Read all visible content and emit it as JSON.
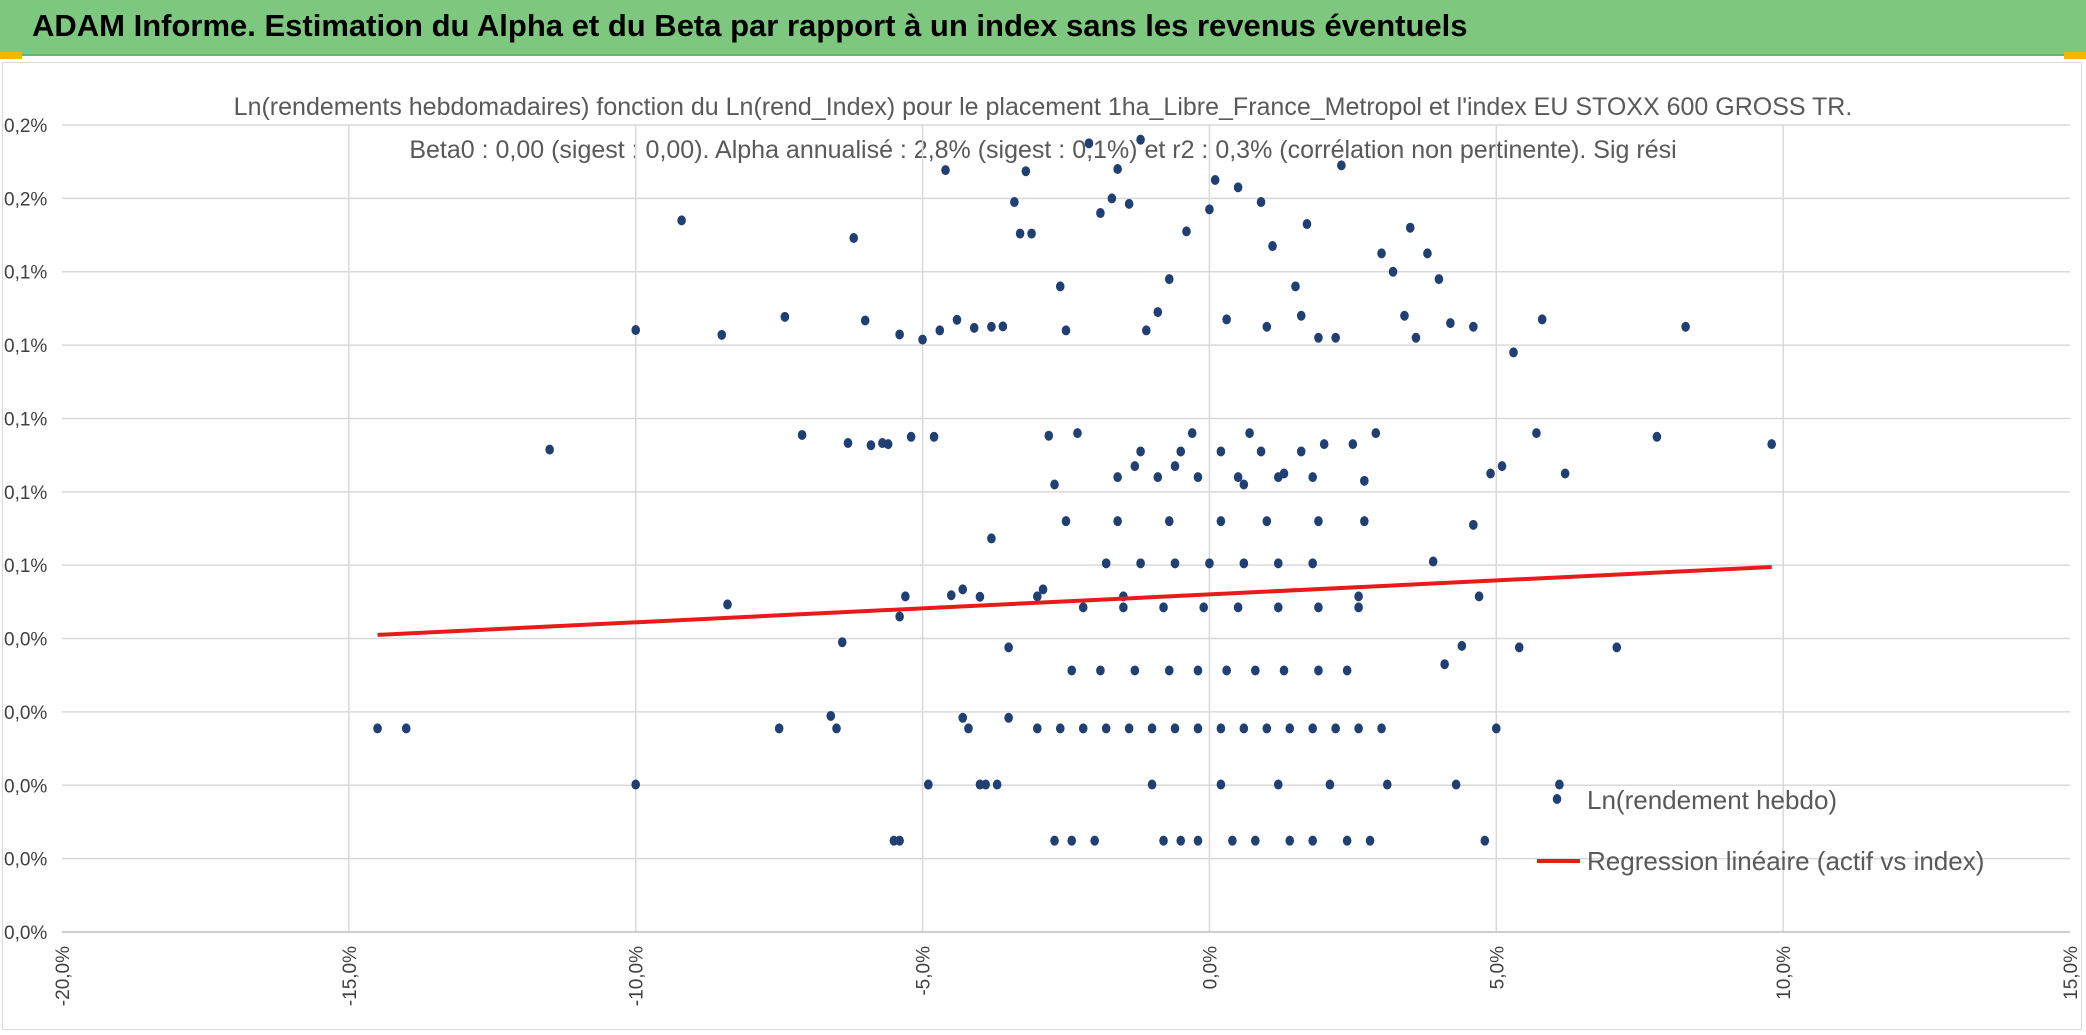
{
  "banner": {
    "title": "ADAM Informe. Estimation du Alpha et du Beta par rapport à un index sans les revenus éventuels",
    "color": "#7dc77e"
  },
  "chart_data": {
    "type": "scatter",
    "title_line1": "Ln(rendements hebdomadaires) fonction du Ln(rend_Index) pour le placement 1ha_Libre_France_Metropol et l'index EU STOXX 600 GROSS TR.",
    "title_line2": "Beta0 : 0,00 (sigest : 0,00). Alpha annualisé : 2,8% (sigest : 0,1%) et r2 : 0,3% (corrélation non pertinente). Sig rési",
    "xlabel": "",
    "ylabel": "",
    "xlim": [
      -20,
      15
    ],
    "ylim": [
      0,
      0.22
    ],
    "x_ticks": [
      -20,
      -15,
      -10,
      -5,
      0,
      5,
      10,
      15
    ],
    "x_tick_labels": [
      "-20,0%",
      "-15,0%",
      "-10,0%",
      "-5,0%",
      "0,0%",
      "5,0%",
      "10,0%",
      "15,0%"
    ],
    "y_ticks": [
      0,
      0.02,
      0.04,
      0.06,
      0.08,
      0.1,
      0.12,
      0.14,
      0.16,
      0.18,
      0.2,
      0.22
    ],
    "y_tick_labels": [
      "0,0%",
      "0,0%",
      "0,0%",
      "0,0%",
      "0,0%",
      "0,1%",
      "0,1%",
      "0,1%",
      "0,1%",
      "0,1%",
      "0,2%",
      "0,2%"
    ],
    "grid": true,
    "legend_position": "bottom-right",
    "series": [
      {
        "name": "Ln(rendement hebdo)",
        "kind": "scatter",
        "color": "#203f73",
        "points": [
          [
            -14.5,
            0.0555
          ],
          [
            -14.0,
            0.0555
          ],
          [
            -11.5,
            0.1315
          ],
          [
            -9.2,
            0.194
          ],
          [
            -10.0,
            0.1641
          ],
          [
            -10.0,
            0.0402
          ],
          [
            -8.5,
            0.1628
          ],
          [
            -8.4,
            0.0893
          ],
          [
            -7.5,
            0.0555
          ],
          [
            -7.4,
            0.1677
          ],
          [
            -7.1,
            0.1355
          ],
          [
            -6.6,
            0.0589
          ],
          [
            -6.5,
            0.0555
          ],
          [
            -6.4,
            0.079
          ],
          [
            -6.3,
            0.1333
          ],
          [
            -6.2,
            0.1892
          ],
          [
            -6.0,
            0.1667
          ],
          [
            -5.9,
            0.1327
          ],
          [
            -5.7,
            0.1333
          ],
          [
            -5.6,
            0.133
          ],
          [
            -5.5,
            0.0249
          ],
          [
            -5.4,
            0.0249
          ],
          [
            -5.4,
            0.1629
          ],
          [
            -5.4,
            0.086
          ],
          [
            -5.3,
            0.0915
          ],
          [
            -5.2,
            0.135
          ],
          [
            -5.0,
            0.1615
          ],
          [
            -4.9,
            0.0402
          ],
          [
            -4.9,
            0.0402
          ],
          [
            -4.8,
            0.135
          ],
          [
            -4.7,
            0.164
          ],
          [
            -4.6,
            0.2077
          ],
          [
            -4.5,
            0.0918
          ],
          [
            -4.4,
            0.1669
          ],
          [
            -4.3,
            0.0934
          ],
          [
            -4.3,
            0.0584
          ],
          [
            -4.2,
            0.0555
          ],
          [
            -4.1,
            0.1647
          ],
          [
            -4.0,
            0.0402
          ],
          [
            -4.0,
            0.0914
          ],
          [
            -3.9,
            0.0402
          ],
          [
            -3.8,
            0.165
          ],
          [
            -3.8,
            0.1073
          ],
          [
            -3.7,
            0.0402
          ],
          [
            -3.6,
            0.1651
          ],
          [
            -3.5,
            0.0776
          ],
          [
            -3.5,
            0.0584
          ],
          [
            -3.4,
            0.199
          ],
          [
            -3.3,
            0.1904
          ],
          [
            -3.2,
            0.2074
          ],
          [
            -3.1,
            0.1904
          ],
          [
            -3.0,
            0.0915
          ],
          [
            -2.9,
            0.0934
          ],
          [
            -2.8,
            0.1353
          ],
          [
            -2.7,
            0.122
          ],
          [
            -2.7,
            0.0249
          ],
          [
            -2.6,
            0.176
          ],
          [
            -2.5,
            0.164
          ],
          [
            -2.4,
            0.0249
          ],
          [
            -2.3,
            0.136
          ],
          [
            -2.1,
            0.215
          ],
          [
            -2.0,
            0.0249
          ],
          [
            -1.9,
            0.196
          ],
          [
            -1.7,
            0.2
          ],
          [
            -1.6,
            0.208
          ],
          [
            -1.5,
            0.0915
          ],
          [
            -1.4,
            0.1985
          ],
          [
            -1.3,
            0.127
          ],
          [
            -1.2,
            0.216
          ],
          [
            -1.1,
            0.164
          ],
          [
            -1.0,
            0.0402
          ],
          [
            -0.9,
            0.169
          ],
          [
            -0.8,
            0.0249
          ],
          [
            -0.7,
            0.178
          ],
          [
            -0.6,
            0.127
          ],
          [
            -0.5,
            0.0249
          ],
          [
            -0.4,
            0.191
          ],
          [
            -0.3,
            0.136
          ],
          [
            -0.2,
            0.0249
          ],
          [
            0.0,
            0.197
          ],
          [
            0.1,
            0.205
          ],
          [
            0.2,
            0.0402
          ],
          [
            0.3,
            0.167
          ],
          [
            0.4,
            0.0249
          ],
          [
            0.5,
            0.203
          ],
          [
            0.6,
            0.122
          ],
          [
            0.7,
            0.136
          ],
          [
            0.8,
            0.0249
          ],
          [
            0.9,
            0.199
          ],
          [
            1.0,
            0.165
          ],
          [
            1.1,
            0.187
          ],
          [
            1.2,
            0.0402
          ],
          [
            1.3,
            0.125
          ],
          [
            1.4,
            0.0249
          ],
          [
            1.5,
            0.176
          ],
          [
            1.6,
            0.168
          ],
          [
            1.7,
            0.193
          ],
          [
            1.8,
            0.0249
          ],
          [
            1.9,
            0.162
          ],
          [
            2.0,
            0.133
          ],
          [
            2.1,
            0.0402
          ],
          [
            2.2,
            0.162
          ],
          [
            2.3,
            0.209
          ],
          [
            2.4,
            0.0249
          ],
          [
            2.5,
            0.133
          ],
          [
            2.6,
            0.0915
          ],
          [
            2.7,
            0.123
          ],
          [
            2.8,
            0.0249
          ],
          [
            2.9,
            0.136
          ],
          [
            3.0,
            0.185
          ],
          [
            3.1,
            0.0402
          ],
          [
            3.2,
            0.18
          ],
          [
            3.4,
            0.168
          ],
          [
            3.5,
            0.192
          ],
          [
            3.6,
            0.162
          ],
          [
            3.8,
            0.185
          ],
          [
            3.9,
            0.101
          ],
          [
            4.0,
            0.178
          ],
          [
            4.1,
            0.073
          ],
          [
            4.2,
            0.166
          ],
          [
            4.3,
            0.0402
          ],
          [
            4.4,
            0.078
          ],
          [
            4.6,
            0.165
          ],
          [
            4.6,
            0.111
          ],
          [
            4.7,
            0.0915
          ],
          [
            4.8,
            0.0249
          ],
          [
            4.9,
            0.125
          ],
          [
            5.0,
            0.0555
          ],
          [
            5.1,
            0.127
          ],
          [
            5.3,
            0.158
          ],
          [
            5.4,
            0.0776
          ],
          [
            5.7,
            0.136
          ],
          [
            5.8,
            0.167
          ],
          [
            6.1,
            0.0402
          ],
          [
            6.2,
            0.125
          ],
          [
            7.1,
            0.0776
          ],
          [
            7.8,
            0.135
          ],
          [
            8.3,
            0.165
          ],
          [
            9.8,
            0.133
          ],
          [
            -3.0,
            0.0555
          ],
          [
            -2.6,
            0.0555
          ],
          [
            -2.2,
            0.0555
          ],
          [
            -1.8,
            0.0555
          ],
          [
            -1.4,
            0.0555
          ],
          [
            -1.0,
            0.0555
          ],
          [
            -0.6,
            0.0555
          ],
          [
            -0.2,
            0.0555
          ],
          [
            0.2,
            0.0555
          ],
          [
            0.6,
            0.0555
          ],
          [
            1.0,
            0.0555
          ],
          [
            1.4,
            0.0555
          ],
          [
            1.8,
            0.0555
          ],
          [
            2.2,
            0.0555
          ],
          [
            2.6,
            0.0555
          ],
          [
            3.0,
            0.0555
          ],
          [
            -2.4,
            0.0713
          ],
          [
            -1.9,
            0.0713
          ],
          [
            -1.3,
            0.0713
          ],
          [
            -0.7,
            0.0713
          ],
          [
            -0.2,
            0.0713
          ],
          [
            0.3,
            0.0713
          ],
          [
            0.8,
            0.0713
          ],
          [
            1.3,
            0.0713
          ],
          [
            1.9,
            0.0713
          ],
          [
            2.4,
            0.0713
          ],
          [
            -2.2,
            0.0885
          ],
          [
            -1.5,
            0.0885
          ],
          [
            -0.8,
            0.0885
          ],
          [
            -0.1,
            0.0885
          ],
          [
            0.5,
            0.0885
          ],
          [
            1.2,
            0.0885
          ],
          [
            1.9,
            0.0885
          ],
          [
            2.6,
            0.0885
          ],
          [
            -1.8,
            0.1005
          ],
          [
            -1.2,
            0.1005
          ],
          [
            -0.6,
            0.1005
          ],
          [
            0.0,
            0.1005
          ],
          [
            0.6,
            0.1005
          ],
          [
            1.2,
            0.1005
          ],
          [
            1.8,
            0.1005
          ],
          [
            -2.5,
            0.112
          ],
          [
            -1.6,
            0.112
          ],
          [
            -0.7,
            0.112
          ],
          [
            0.2,
            0.112
          ],
          [
            1.0,
            0.112
          ],
          [
            1.9,
            0.112
          ],
          [
            2.7,
            0.112
          ],
          [
            -1.6,
            0.124
          ],
          [
            -0.9,
            0.124
          ],
          [
            -0.2,
            0.124
          ],
          [
            0.5,
            0.124
          ],
          [
            1.2,
            0.124
          ],
          [
            1.8,
            0.124
          ],
          [
            -1.2,
            0.131
          ],
          [
            -0.5,
            0.131
          ],
          [
            0.2,
            0.131
          ],
          [
            0.9,
            0.131
          ],
          [
            1.6,
            0.131
          ]
        ]
      },
      {
        "name": "Regression linéaire (actif vs index)",
        "kind": "line",
        "color": "#e81a1a",
        "points": [
          [
            -14.5,
            0.081
          ],
          [
            9.8,
            0.0995
          ]
        ]
      }
    ]
  }
}
